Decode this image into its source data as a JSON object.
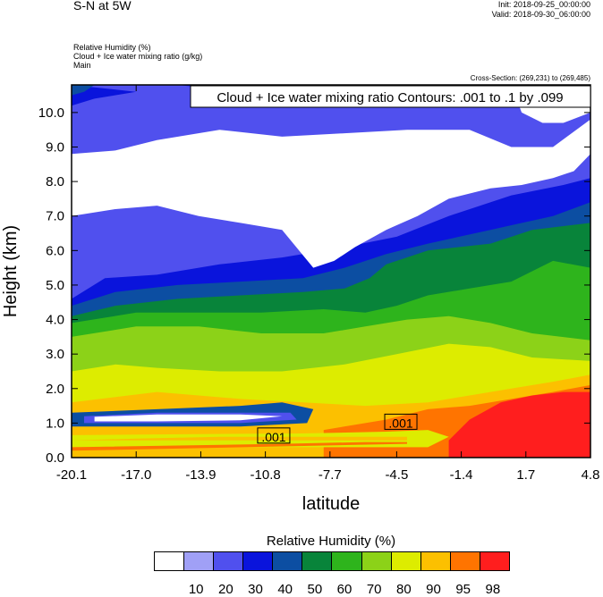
{
  "header": {
    "title": "S-N at 5W",
    "init": "Init: 2018-09-25_00:00:00",
    "valid": "Valid: 2018-09-30_06:00:00",
    "field1": "Relative Humidity   (%)",
    "field2": "Cloud + Ice water mixing ratio   (g/kg)",
    "field3": "Main",
    "cross_section": "Cross-Section: (269,231) to (269,485)"
  },
  "chart_data": {
    "type": "heatmap",
    "title": "",
    "xlabel": "latitude",
    "ylabel": "Height (km)",
    "xlim": [
      -20.1,
      4.8
    ],
    "ylim": [
      0,
      10.8
    ],
    "x_ticks": [
      -20.1,
      -17.0,
      -13.9,
      -10.8,
      -7.7,
      -4.5,
      -1.4,
      1.7,
      4.8
    ],
    "x_tick_labels": [
      "-20.1",
      "-17.0",
      "-13.9",
      "-10.8",
      "-7.7",
      "-4.5",
      "-1.4",
      "1.7",
      "4.8"
    ],
    "y_ticks": [
      0,
      1,
      2,
      3,
      4,
      5,
      6,
      7,
      8,
      9,
      10
    ],
    "y_tick_labels": [
      "0.0",
      "1.0",
      "2.0",
      "3.0",
      "4.0",
      "5.0",
      "6.0",
      "7.0",
      "8.0",
      "9.0",
      "10.0"
    ],
    "contour_info": "Cloud + Ice water mixing ratio Contours: .001 to .1 by .099",
    "contour_labels": [
      {
        "text": ".001",
        "x": -10.4,
        "y": 0.6
      },
      {
        "text": ".001",
        "x": -4.3,
        "y": 1.0
      }
    ],
    "legend": {
      "title": "Relative Humidity  (%)",
      "levels": [
        "10",
        "20",
        "30",
        "40",
        "50",
        "60",
        "70",
        "80",
        "90",
        "95",
        "98"
      ],
      "colors": [
        "#ffffff",
        "#a0a0f6",
        "#5050ee",
        "#0a14dc",
        "#0c4ea2",
        "#08843a",
        "#2eb41c",
        "#8cd218",
        "#ddec00",
        "#fcc000",
        "#ff7400",
        "#ff1e1e"
      ]
    },
    "regions": [
      {
        "rh": "20-30",
        "poly": [
          [
            -20.1,
            10.8
          ],
          [
            4.8,
            10.8
          ],
          [
            4.8,
            0
          ],
          [
            -20.1,
            0
          ]
        ]
      },
      {
        "rh": "30-40",
        "poly": [
          [
            -20.1,
            4.6
          ],
          [
            -18.5,
            5.2
          ],
          [
            -16,
            5.3
          ],
          [
            -13,
            5.6
          ],
          [
            -10,
            5.8
          ],
          [
            -7,
            6.1
          ],
          [
            -4.5,
            6.4
          ],
          [
            -2,
            7.0
          ],
          [
            1,
            7.6
          ],
          [
            3.5,
            7.9
          ],
          [
            4.8,
            8.1
          ],
          [
            4.8,
            0
          ],
          [
            -20.1,
            0
          ]
        ]
      },
      {
        "rh": "40-50",
        "poly": [
          [
            -20.1,
            4.4
          ],
          [
            -18,
            4.8
          ],
          [
            -15,
            5.0
          ],
          [
            -12,
            5.1
          ],
          [
            -9,
            5.2
          ],
          [
            -7,
            5.5
          ],
          [
            -5,
            5.9
          ],
          [
            -3,
            6.2
          ],
          [
            0,
            6.6
          ],
          [
            3,
            7.0
          ],
          [
            4.8,
            7.4
          ],
          [
            4.8,
            0
          ],
          [
            -20.1,
            0
          ]
        ]
      },
      {
        "rh": "50-60",
        "poly": [
          [
            -20.1,
            4.1
          ],
          [
            -18,
            4.4
          ],
          [
            -15,
            4.6
          ],
          [
            -12,
            4.7
          ],
          [
            -9,
            4.8
          ],
          [
            -7,
            4.9
          ],
          [
            -5.8,
            5.2
          ],
          [
            -5,
            5.6
          ],
          [
            -3,
            6.0
          ],
          [
            0,
            6.2
          ],
          [
            2,
            6.6
          ],
          [
            4.8,
            6.8
          ],
          [
            4.8,
            0
          ],
          [
            -20.1,
            0
          ]
        ]
      },
      {
        "rh": "60-70",
        "poly": [
          [
            -20.1,
            3.9
          ],
          [
            -17,
            4.2
          ],
          [
            -14,
            4.2
          ],
          [
            -11,
            4.2
          ],
          [
            -8,
            4.3
          ],
          [
            -6,
            4.2
          ],
          [
            -4.5,
            4.4
          ],
          [
            -3,
            4.7
          ],
          [
            -1,
            4.9
          ],
          [
            1,
            5.1
          ],
          [
            3,
            5.7
          ],
          [
            4.8,
            5.5
          ],
          [
            4.8,
            0
          ],
          [
            -20.1,
            0
          ]
        ]
      },
      {
        "rh": "70-80",
        "poly": [
          [
            -20.1,
            3.5
          ],
          [
            -17,
            3.8
          ],
          [
            -14,
            3.8
          ],
          [
            -11,
            3.6
          ],
          [
            -8,
            3.6
          ],
          [
            -6,
            3.8
          ],
          [
            -4,
            4.0
          ],
          [
            -2,
            4.1
          ],
          [
            0,
            3.9
          ],
          [
            2,
            3.6
          ],
          [
            4.8,
            3.4
          ],
          [
            4.8,
            0
          ],
          [
            -20.1,
            0
          ]
        ]
      },
      {
        "rh": "80-90",
        "poly": [
          [
            -20.1,
            2.5
          ],
          [
            -18,
            2.7
          ],
          [
            -16,
            2.6
          ],
          [
            -13,
            2.5
          ],
          [
            -10,
            2.5
          ],
          [
            -7,
            2.7
          ],
          [
            -4.5,
            3.0
          ],
          [
            -2,
            3.3
          ],
          [
            0,
            3.2
          ],
          [
            2,
            2.9
          ],
          [
            4.8,
            2.8
          ],
          [
            4.8,
            0
          ],
          [
            -20.1,
            0
          ]
        ]
      },
      {
        "rh": "90-95",
        "poly": [
          [
            -20.1,
            1.6
          ],
          [
            -16,
            1.9
          ],
          [
            -12,
            1.7
          ],
          [
            -9,
            1.6
          ],
          [
            -6,
            1.5
          ],
          [
            -3,
            1.6
          ],
          [
            -1,
            1.8
          ],
          [
            1,
            2.0
          ],
          [
            3,
            2.2
          ],
          [
            4.8,
            2.4
          ],
          [
            4.8,
            0
          ],
          [
            -20.1,
            0
          ]
        ]
      },
      {
        "rh": "95-98",
        "poly": [
          [
            -8,
            0.8
          ],
          [
            -5,
            1.1
          ],
          [
            -3,
            1.4
          ],
          [
            -1,
            1.5
          ],
          [
            1,
            1.7
          ],
          [
            3,
            1.9
          ],
          [
            4.8,
            2.1
          ],
          [
            4.8,
            0
          ],
          [
            -8,
            0
          ]
        ]
      },
      {
        "rh": "98+",
        "poly": [
          [
            -2,
            0.5
          ],
          [
            -1,
            1.1
          ],
          [
            0.5,
            1.6
          ],
          [
            2,
            1.8
          ],
          [
            3.5,
            1.9
          ],
          [
            4.8,
            1.9
          ],
          [
            4.8,
            0
          ],
          [
            -2,
            0
          ]
        ]
      },
      {
        "rh": "80-90",
        "poly": [
          [
            -20.1,
            0.65
          ],
          [
            -14,
            0.68
          ],
          [
            -9,
            0.7
          ],
          [
            -5,
            0.75
          ],
          [
            -3,
            0.8
          ],
          [
            -2,
            0.6
          ],
          [
            -3,
            0.3
          ],
          [
            -8,
            0.3
          ],
          [
            -20.1,
            0.3
          ]
        ]
      },
      {
        "rh": "90-95",
        "poly": [
          [
            -20.1,
            0.5
          ],
          [
            -17,
            0.55
          ],
          [
            -13,
            0.6
          ],
          [
            -9,
            0.6
          ],
          [
            -6,
            0.6
          ],
          [
            -4,
            0.6
          ],
          [
            -4,
            0.5
          ],
          [
            -20.1,
            0.5
          ]
        ]
      },
      {
        "rh": "95-98",
        "poly": [
          [
            -20.1,
            0.3
          ],
          [
            -15,
            0.35
          ],
          [
            -10,
            0.4
          ],
          [
            -6,
            0.45
          ],
          [
            -4,
            0.45
          ],
          [
            -4,
            0.4
          ],
          [
            -20.1,
            0.2
          ]
        ]
      },
      {
        "rh": "40-50",
        "poly": [
          [
            -20.1,
            1.3
          ],
          [
            -16,
            1.4
          ],
          [
            -12,
            1.5
          ],
          [
            -10,
            1.6
          ],
          [
            -8.5,
            1.4
          ],
          [
            -8.8,
            1.0
          ],
          [
            -12,
            0.9
          ],
          [
            -16,
            0.9
          ],
          [
            -20.1,
            0.9
          ]
        ]
      },
      {
        "rh": "20-30",
        "poly": [
          [
            -19.5,
            1.2
          ],
          [
            -16,
            1.3
          ],
          [
            -12,
            1.3
          ],
          [
            -9.6,
            1.3
          ],
          [
            -9.3,
            1.1
          ],
          [
            -12,
            1.0
          ],
          [
            -16,
            1.0
          ],
          [
            -19.5,
            1.0
          ]
        ]
      },
      {
        "rh": "10-20",
        "poly": [
          [
            -19,
            1.18
          ],
          [
            -16,
            1.25
          ],
          [
            -12,
            1.25
          ],
          [
            -10,
            1.2
          ],
          [
            -12,
            1.08
          ],
          [
            -16,
            1.05
          ],
          [
            -19,
            1.05
          ]
        ]
      },
      {
        "rh": "10-20",
        "poly": [
          [
            -20.1,
            7.0
          ],
          [
            -18,
            7.2
          ],
          [
            -16,
            7.3
          ],
          [
            -14,
            7.0
          ],
          [
            -12,
            6.8
          ],
          [
            -10,
            6.6
          ],
          [
            -8.5,
            5.5
          ],
          [
            -7.5,
            5.7
          ],
          [
            -6.5,
            6.1
          ],
          [
            -5,
            6.6
          ],
          [
            -3.5,
            7.0
          ],
          [
            -2,
            7.5
          ],
          [
            0,
            7.8
          ],
          [
            1.5,
            7.9
          ],
          [
            3,
            8.1
          ],
          [
            4,
            8.3
          ],
          [
            4.8,
            8.8
          ],
          [
            4.8,
            9.8
          ],
          [
            3,
            9.0
          ],
          [
            1,
            9.0
          ],
          [
            -1,
            9.5
          ],
          [
            -2.5,
            9.5
          ],
          [
            -4,
            9.5
          ],
          [
            -7,
            9.4
          ],
          [
            -10,
            9.3
          ],
          [
            -13,
            9.5
          ],
          [
            -16,
            9.2
          ],
          [
            -18,
            8.9
          ],
          [
            -20.1,
            8.8
          ]
        ]
      },
      {
        "rh": "30-40",
        "poly": [
          [
            -20.1,
            10.8
          ],
          [
            -15,
            10.8
          ],
          [
            -12,
            10.6
          ],
          [
            -8,
            10.5
          ],
          [
            -4,
            10.7
          ],
          [
            -1,
            10.6
          ],
          [
            1,
            10.8
          ],
          [
            -20.1,
            10.8
          ]
        ]
      },
      {
        "rh": "30-40",
        "poly": [
          [
            -20.1,
            10.2
          ],
          [
            -19,
            10.4
          ],
          [
            -17,
            10.6
          ],
          [
            -20.1,
            10.8
          ]
        ]
      },
      {
        "rh": "40-50",
        "poly": [
          [
            -20.1,
            10.5
          ],
          [
            -19.5,
            10.6
          ],
          [
            -19,
            10.8
          ],
          [
            -20.1,
            10.8
          ]
        ]
      },
      {
        "rh": "10-20",
        "poly": [
          [
            1.0,
            10.8
          ],
          [
            1.5,
            10.0
          ],
          [
            2.5,
            9.7
          ],
          [
            3.5,
            9.7
          ],
          [
            4.8,
            10.0
          ],
          [
            4.8,
            10.8
          ]
        ]
      }
    ]
  }
}
